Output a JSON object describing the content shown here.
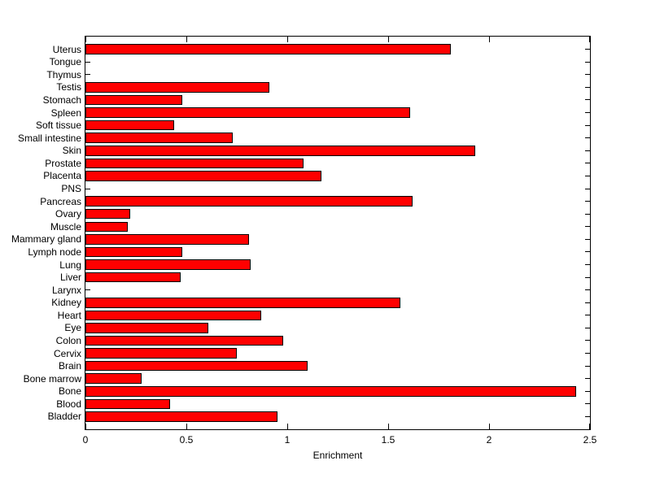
{
  "figure": {
    "background": "#ffffff",
    "axis_color": "#000000"
  },
  "chart_data": {
    "type": "bar",
    "orientation": "horizontal",
    "title": "",
    "xlabel": "Enrichment",
    "ylabel": "",
    "xlim": [
      0,
      2.5
    ],
    "xticks": [
      0,
      0.5,
      1,
      1.5,
      2,
      2.5
    ],
    "xtick_labels": [
      "0",
      "0.5",
      "1",
      "1.5",
      "2",
      "2.5"
    ],
    "grid": false,
    "legend": null,
    "bar_color": "#ff0000",
    "bar_edge_color": "#000000",
    "categories": [
      "Uterus",
      "Tongue",
      "Thymus",
      "Testis",
      "Stomach",
      "Spleen",
      "Soft tissue",
      "Small intestine",
      "Skin",
      "Prostate",
      "Placenta",
      "PNS",
      "Pancreas",
      "Ovary",
      "Muscle",
      "Mammary gland",
      "Lymph node",
      "Lung",
      "Liver",
      "Larynx",
      "Kidney",
      "Heart",
      "Eye",
      "Colon",
      "Cervix",
      "Brain",
      "Bone marrow",
      "Bone",
      "Blood",
      "Bladder"
    ],
    "values": [
      1.81,
      0,
      0,
      0.91,
      0.48,
      1.61,
      0.44,
      0.73,
      1.93,
      1.08,
      1.17,
      0,
      1.62,
      0.22,
      0.21,
      0.81,
      0.48,
      0.82,
      0.47,
      0,
      1.56,
      0.87,
      0.61,
      0.98,
      0.75,
      1.1,
      0.28,
      2.43,
      0.42,
      0.95
    ]
  }
}
